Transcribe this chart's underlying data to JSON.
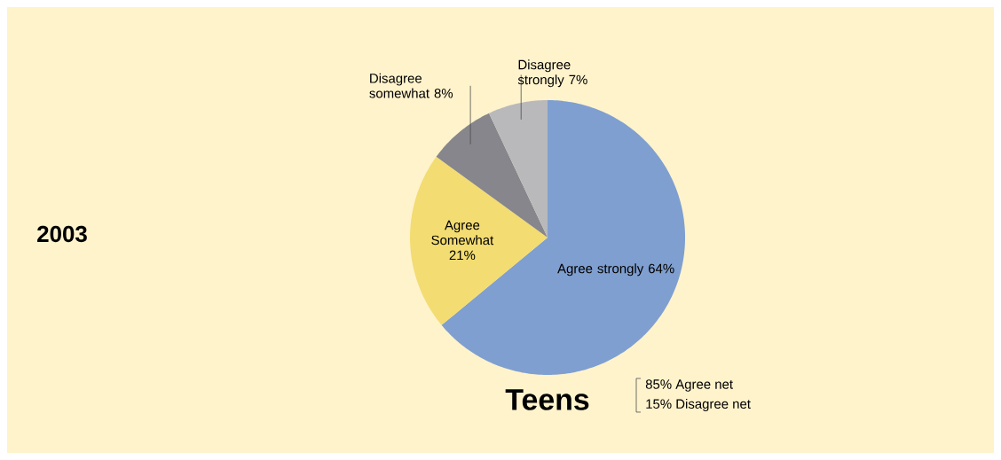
{
  "chart_data": {
    "type": "pie",
    "title": "Teens",
    "subtitle": "2003",
    "categories": [
      "Agree strongly",
      "Agree Somewhat",
      "Disagree somewhat",
      "Disagree strongly"
    ],
    "values": [
      64,
      21,
      8,
      7
    ],
    "colors": [
      "#7f9fd0",
      "#f3dc72",
      "#86868c",
      "#b9b9bb"
    ],
    "value_labels": [
      "64%",
      "21%",
      "8%",
      "7%"
    ],
    "annotations": [
      "85%  Agree net",
      "15%  Disagree net"
    ]
  }
}
